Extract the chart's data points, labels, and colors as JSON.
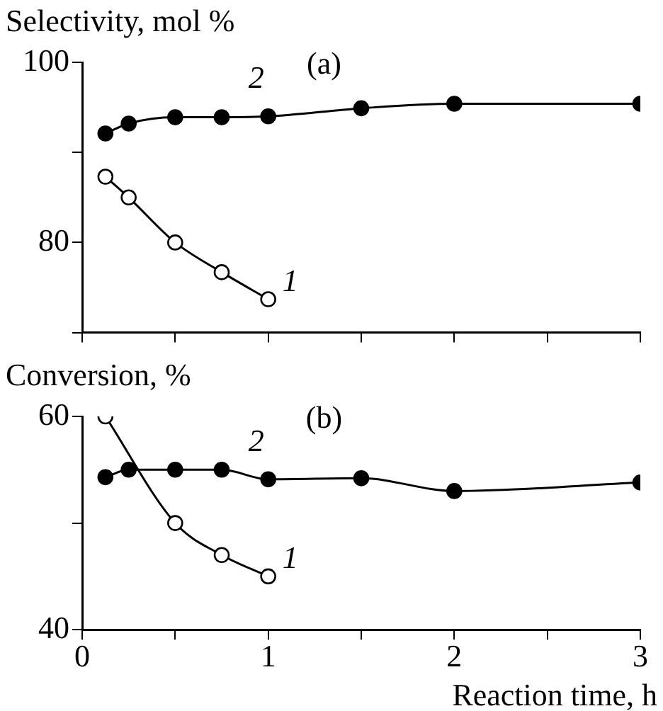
{
  "chart_data": [
    {
      "type": "line",
      "ylabel": "Selectivity, mol %",
      "annotations": [
        "(a)"
      ],
      "xlim": [
        0,
        3
      ],
      "xticks": [
        0,
        {
          "value": 0.5,
          "label": null
        },
        1,
        {
          "value": 1.5,
          "label": null
        },
        2,
        {
          "value": 2.5,
          "label": null
        },
        3
      ],
      "ylim": [
        70,
        100
      ],
      "yticks": [
        {
          "value": 70,
          "label": null
        },
        80,
        {
          "value": 90,
          "label": null
        },
        100
      ],
      "tick_labels": "y",
      "legend": false,
      "grid": false,
      "marker": "circle",
      "line_style": "solid",
      "series": [
        {
          "name": "1",
          "color": "#000000",
          "x": [
            0.125,
            0.25,
            0.5,
            0.75,
            1
          ],
          "values": [
            87.3,
            85.0,
            80.0,
            76.7,
            73.7
          ]
        },
        {
          "name": "2",
          "color": "#000000",
          "x": [
            0.125,
            0.25,
            0.5,
            0.75,
            1,
            1.5,
            2,
            3
          ],
          "values": [
            92.1,
            93.2,
            93.9,
            93.9,
            94.0,
            94.9,
            95.4,
            95.4
          ]
        }
      ]
    },
    {
      "type": "line",
      "ylabel": "Conversion, %",
      "xlabel": "Reaction time, h",
      "annotations": [
        "(b)"
      ],
      "xlim": [
        0,
        3
      ],
      "xticks": [
        0,
        {
          "value": 0.5,
          "label": null
        },
        1,
        {
          "value": 1.5,
          "label": null
        },
        2,
        {
          "value": 2.5,
          "label": null
        },
        3
      ],
      "ylim": [
        40,
        60
      ],
      "yticks": [
        40,
        {
          "value": 50,
          "label": null
        },
        60
      ],
      "legend": false,
      "grid": false,
      "marker": "circle",
      "line_style": "solid",
      "series": [
        {
          "name": "1",
          "color": "#000000",
          "x": [
            0.125,
            0.5,
            0.75,
            1
          ],
          "values": [
            60.0,
            50.0,
            47.0,
            45.0
          ]
        },
        {
          "name": "2",
          "color": "#000000",
          "x": [
            0.125,
            0.25,
            0.5,
            0.75,
            1,
            1.5,
            2,
            3
          ],
          "values": [
            54.3,
            55.0,
            55.0,
            55.0,
            54.1,
            54.2,
            53.0,
            53.8
          ]
        }
      ]
    }
  ]
}
